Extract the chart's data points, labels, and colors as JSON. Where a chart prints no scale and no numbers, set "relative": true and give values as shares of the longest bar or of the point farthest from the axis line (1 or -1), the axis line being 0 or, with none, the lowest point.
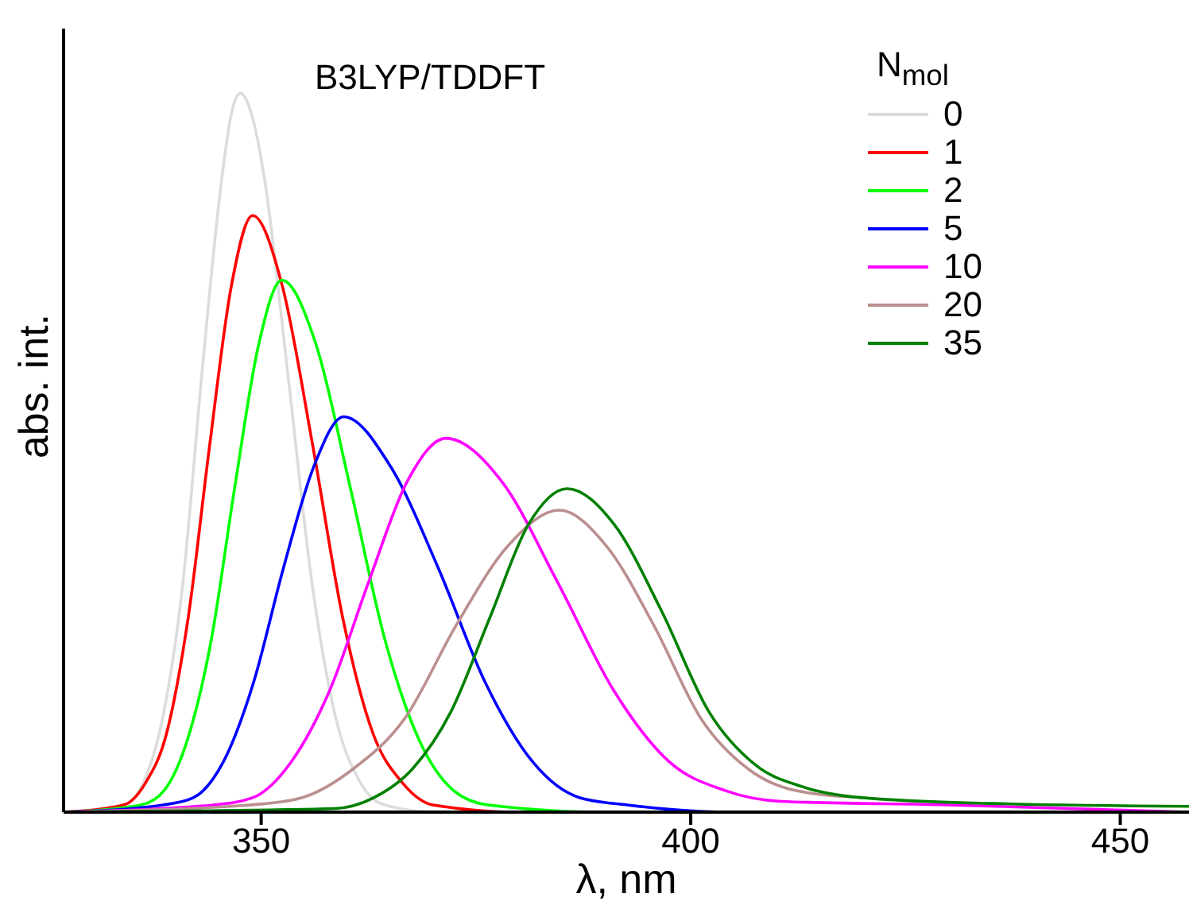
{
  "chart_data": {
    "type": "line",
    "title": "B3LYP/TDDFT",
    "xlabel": "λ, nm",
    "ylabel": "abs. int.",
    "legend_title": "N$_{mol}$",
    "relative": true,
    "xlim": [
      327,
      458
    ],
    "xticks": [
      350,
      400,
      450
    ],
    "legend": "top right",
    "marker": "none",
    "line_style": "solid",
    "grid": false,
    "series": [
      {
        "name": "0",
        "color": "#dcdcdc",
        "x": [
          327,
          334.1,
          336.4,
          338.6,
          340.9,
          343.1,
          345.4,
          346.5,
          347.6,
          348.9,
          350.4,
          353.1,
          355.9,
          358.6,
          361.4,
          364.1,
          370,
          458
        ],
        "values": [
          0,
          0.011,
          0.044,
          0.135,
          0.32,
          0.61,
          0.88,
          0.97,
          1,
          0.97,
          0.88,
          0.61,
          0.32,
          0.135,
          0.044,
          0.011,
          0,
          0
        ]
      },
      {
        "name": "1",
        "color": "#ff0000",
        "x": [
          327,
          334,
          336.5,
          339,
          341.5,
          344,
          346.5,
          349,
          352.5,
          356,
          359.5,
          363,
          366.5,
          370,
          380,
          458
        ],
        "values": [
          0,
          0.01,
          0.04,
          0.11,
          0.27,
          0.51,
          0.73,
          0.83,
          0.73,
          0.51,
          0.27,
          0.11,
          0.04,
          0.01,
          0,
          0
        ]
      },
      {
        "name": "2",
        "color": "#00ff00",
        "x": [
          327,
          336,
          338.7,
          341.4,
          344.2,
          346.9,
          349.7,
          352.4,
          356.4,
          360.4,
          364.4,
          368.4,
          372.4,
          376.4,
          390,
          458
        ],
        "values": [
          0,
          0.01,
          0.03,
          0.1,
          0.24,
          0.45,
          0.65,
          0.74,
          0.65,
          0.45,
          0.24,
          0.1,
          0.03,
          0.01,
          0,
          0
        ]
      },
      {
        "name": "5",
        "color": "#0000ff",
        "x": [
          327,
          338.6,
          342.1,
          345.6,
          349.1,
          352.6,
          356.1,
          359.6,
          365.1,
          370.6,
          376.1,
          381.6,
          387.1,
          392.6,
          405,
          458
        ],
        "values": [
          0,
          0.01,
          0.02,
          0.07,
          0.18,
          0.34,
          0.48,
          0.55,
          0.48,
          0.34,
          0.18,
          0.07,
          0.02,
          0.01,
          0,
          0
        ]
      },
      {
        "name": "10",
        "color": "#ff00ff",
        "x": [
          327,
          344.5,
          349,
          353.5,
          358,
          362.5,
          367,
          371.5,
          378,
          384.5,
          391,
          397.5,
          404,
          410.5,
          430,
          458
        ],
        "values": [
          0,
          0.01,
          0.02,
          0.07,
          0.17,
          0.32,
          0.46,
          0.52,
          0.46,
          0.32,
          0.17,
          0.07,
          0.03,
          0.015,
          0.01,
          0
        ]
      },
      {
        "name": "20",
        "color": "#bc8f8f",
        "x": [
          327,
          348.7,
          354.7,
          360.7,
          366.7,
          372.7,
          378.7,
          384.7,
          390.2,
          395.7,
          401.2,
          406.7,
          412.2,
          420
        ],
        "values": [
          0,
          0.01,
          0.02,
          0.06,
          0.13,
          0.26,
          0.37,
          0.42,
          0.37,
          0.26,
          0.13,
          0.06,
          0.03,
          0.02
        ]
      },
      {
        "name": "35",
        "color": "#008000",
        "x": [
          327,
          358.6,
          363.1,
          367.6,
          372.1,
          376.6,
          381.1,
          385.6,
          391.1,
          396.6,
          402.1,
          407.6,
          413.1,
          420,
          435,
          458
        ],
        "values": [
          0,
          0.005,
          0.02,
          0.06,
          0.14,
          0.27,
          0.4,
          0.45,
          0.4,
          0.28,
          0.14,
          0.065,
          0.035,
          0.02,
          0.012,
          0.008
        ]
      }
    ]
  }
}
